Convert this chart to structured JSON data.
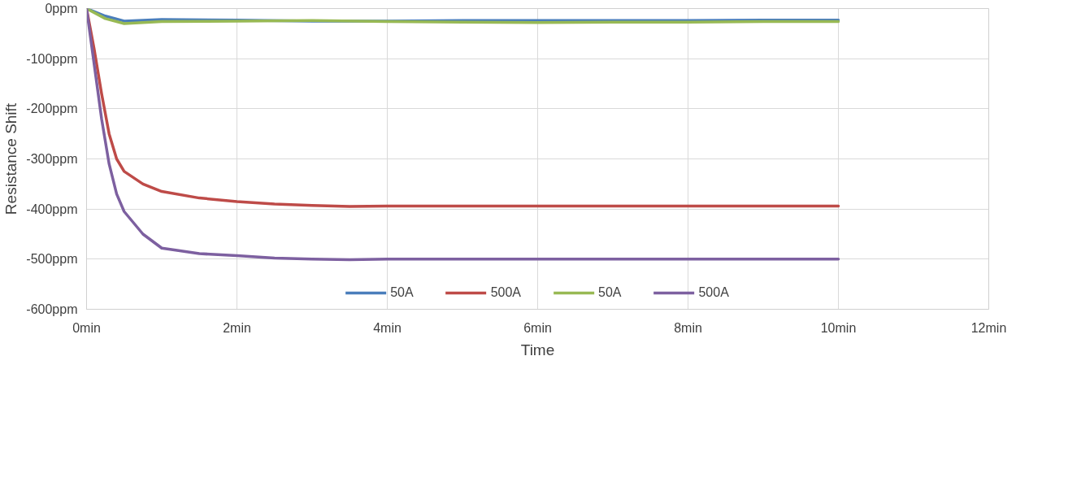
{
  "chart_data": {
    "type": "line",
    "xlabel": "Time",
    "ylabel": "Resistance Shift",
    "xlim": [
      0,
      12
    ],
    "ylim": [
      -600,
      0
    ],
    "xticks": [
      {
        "value": 0,
        "label": "0min"
      },
      {
        "value": 2,
        "label": "2min"
      },
      {
        "value": 4,
        "label": "4min"
      },
      {
        "value": 6,
        "label": "6min"
      },
      {
        "value": 8,
        "label": "8min"
      },
      {
        "value": 10,
        "label": "10min"
      },
      {
        "value": 12,
        "label": "12min"
      }
    ],
    "yticks": [
      {
        "value": 0,
        "label": "0ppm"
      },
      {
        "value": -100,
        "label": "-100ppm"
      },
      {
        "value": -200,
        "label": "-200ppm"
      },
      {
        "value": -300,
        "label": "-300ppm"
      },
      {
        "value": -400,
        "label": "-400ppm"
      },
      {
        "value": -500,
        "label": "-500ppm"
      },
      {
        "value": -600,
        "label": "-600ppm"
      }
    ],
    "grid": true,
    "legend": "bottom",
    "line_style": "solid",
    "marker": "none",
    "series": [
      {
        "name": "50A",
        "color": "#4a7ebb",
        "x": [
          0,
          0.25,
          0.5,
          1,
          2,
          3,
          4,
          5,
          6,
          7,
          8,
          9,
          10
        ],
        "values": [
          0,
          -15,
          -25,
          -22,
          -23,
          -25,
          -25,
          -24,
          -24,
          -24,
          -24,
          -23,
          -23
        ]
      },
      {
        "name": "500A",
        "color": "#be4b48",
        "x": [
          0,
          0.1,
          0.2,
          0.3,
          0.4,
          0.5,
          0.75,
          1,
          1.5,
          2,
          2.5,
          3,
          3.5,
          4,
          6,
          8,
          10
        ],
        "values": [
          0,
          -80,
          -170,
          -250,
          -300,
          -325,
          -350,
          -365,
          -378,
          -385,
          -390,
          -393,
          -395,
          -394,
          -394,
          -394,
          -394
        ]
      },
      {
        "name": "50A",
        "color": "#98b954",
        "x": [
          0,
          0.25,
          0.5,
          1,
          2,
          3,
          4,
          5,
          6,
          7,
          8,
          9,
          10
        ],
        "values": [
          0,
          -20,
          -30,
          -26,
          -25,
          -24,
          -26,
          -27,
          -28,
          -27,
          -27,
          -26,
          -26
        ]
      },
      {
        "name": "500A",
        "color": "#7d60a0",
        "x": [
          0,
          0.1,
          0.2,
          0.3,
          0.4,
          0.5,
          0.75,
          1,
          1.5,
          2,
          2.5,
          3,
          3.5,
          4,
          6,
          8,
          10
        ],
        "values": [
          0,
          -110,
          -220,
          -310,
          -370,
          -405,
          -450,
          -478,
          -489,
          -493,
          -498,
          -500,
          -501,
          -500,
          -500,
          -500,
          -500
        ]
      }
    ]
  }
}
